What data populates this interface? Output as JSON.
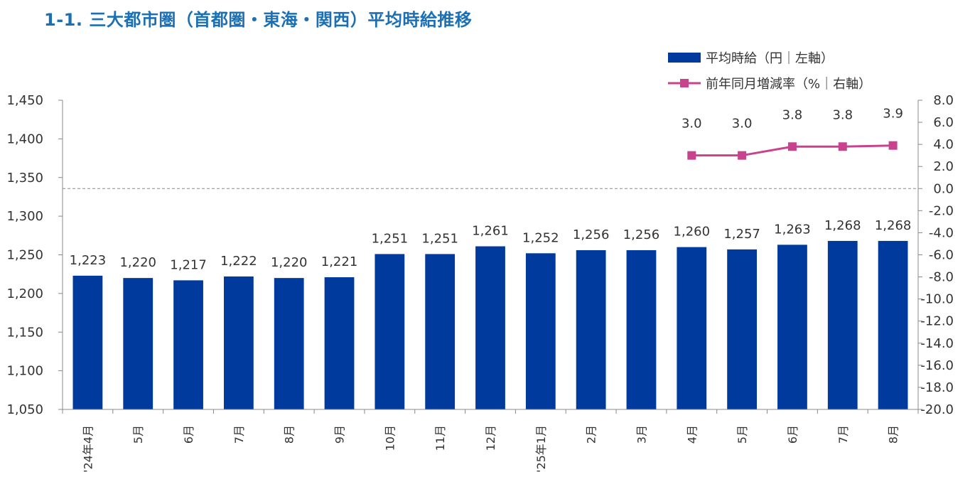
{
  "title": "1-1. 三大都市圏（首都圏・東海・関西）平均時給推移",
  "colors": {
    "title": "#1a6fb5",
    "bar": "#003a9c",
    "line": "#c8428e",
    "axis": "#888888",
    "text": "#333333"
  },
  "chart_data": {
    "type": "bar",
    "categories": [
      "'24年4月",
      "5月",
      "6月",
      "7月",
      "8月",
      "9月",
      "10月",
      "11月",
      "12月",
      "'25年1月",
      "2月",
      "3月",
      "4月",
      "5月",
      "6月",
      "7月",
      "8月"
    ],
    "series": [
      {
        "name": "平均時給（円｜左軸）",
        "type": "bar",
        "axis": "left",
        "values": [
          1223,
          1220,
          1217,
          1222,
          1220,
          1221,
          1251,
          1251,
          1261,
          1252,
          1256,
          1256,
          1260,
          1257,
          1263,
          1268,
          1268
        ],
        "labels": [
          "1,223",
          "1,220",
          "1,217",
          "1,222",
          "1,220",
          "1,221",
          "1,251",
          "1,251",
          "1,261",
          "1,252",
          "1,256",
          "1,256",
          "1,260",
          "1,257",
          "1,263",
          "1,268",
          "1,268"
        ]
      },
      {
        "name": "前年同月増減率（%｜右軸）",
        "type": "line",
        "axis": "right",
        "values": [
          null,
          null,
          null,
          null,
          null,
          null,
          null,
          null,
          null,
          null,
          null,
          null,
          3.0,
          3.0,
          3.8,
          3.8,
          3.9
        ],
        "labels": [
          null,
          null,
          null,
          null,
          null,
          null,
          null,
          null,
          null,
          null,
          null,
          null,
          "3.0",
          "3.0",
          "3.8",
          "3.8",
          "3.9"
        ]
      }
    ],
    "y_left": {
      "range": [
        1050,
        1450
      ],
      "ticks": [
        1050,
        1100,
        1150,
        1200,
        1250,
        1300,
        1350,
        1400,
        1450
      ],
      "tick_labels": [
        "1,050",
        "1,100",
        "1,150",
        "1,200",
        "1,250",
        "1,300",
        "1,350",
        "1,400",
        "1,450"
      ]
    },
    "y_right": {
      "range": [
        -20,
        8
      ],
      "ticks": [
        -20,
        -18,
        -16,
        -14,
        -12,
        -10,
        -8,
        -6,
        -4,
        -2,
        0,
        2,
        4,
        6,
        8
      ],
      "tick_labels": [
        "-20.0",
        "-18.0",
        "-16.0",
        "-14.0",
        "-12.0",
        "-10.0",
        "-8.0",
        "-6.0",
        "-4.0",
        "-2.0",
        "0.0",
        "2.0",
        "4.0",
        "6.0",
        "8.0"
      ]
    },
    "zero_line": "dashed at right-axis 0",
    "grid": false,
    "legend_position": "top-right"
  }
}
